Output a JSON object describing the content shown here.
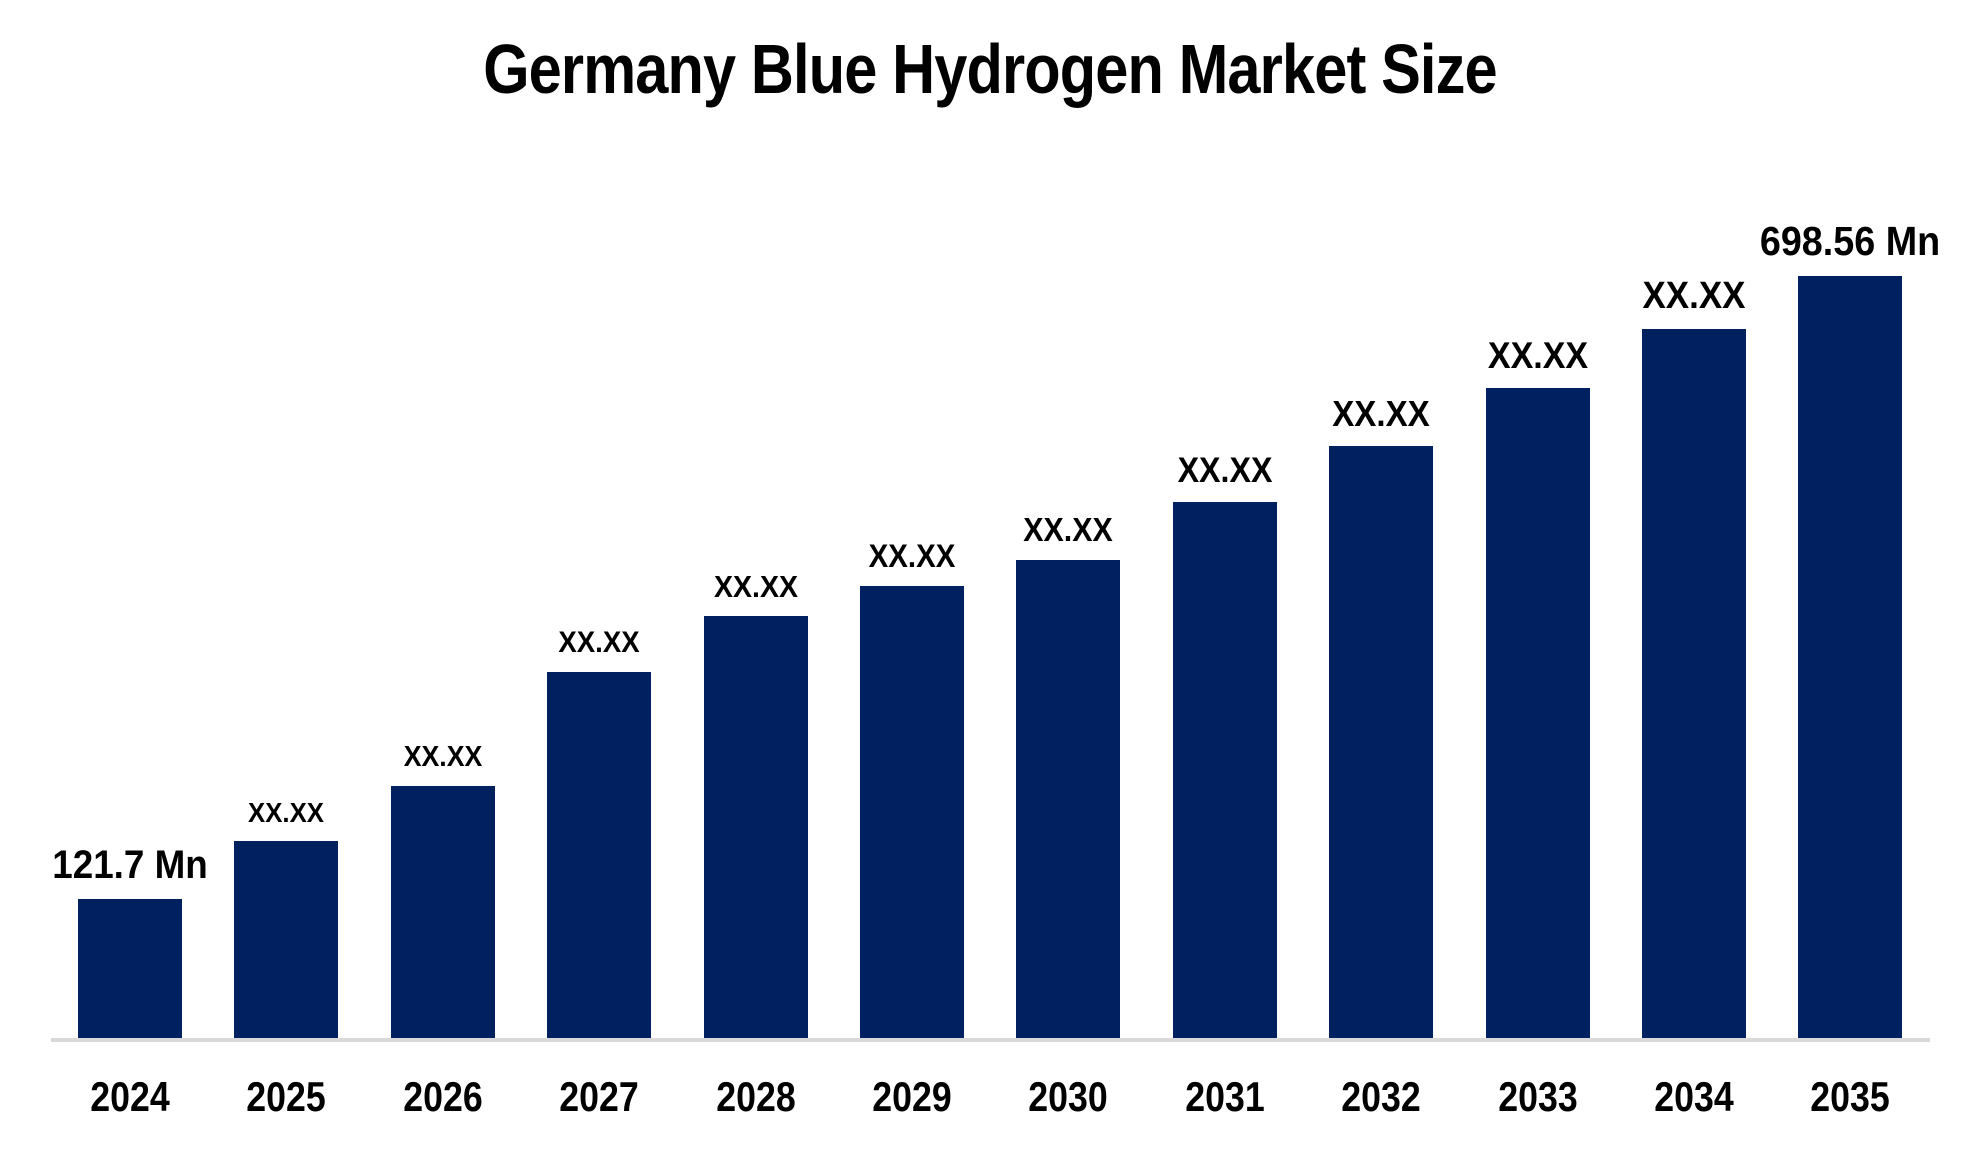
{
  "chart_data": {
    "type": "bar",
    "title": "Germany Blue Hydrogen Market Size",
    "unit": "Mn",
    "categories": [
      "2024",
      "2025",
      "2026",
      "2027",
      "2028",
      "2029",
      "2030",
      "2031",
      "2032",
      "2033",
      "2034",
      "2035"
    ],
    "value_labels": [
      "121.7 Mn",
      "XX.XX",
      "XX.XX",
      "XX.XX",
      "XX.XX",
      "XX.XX",
      "XX.XX",
      "XX.XX",
      "XX.XX",
      "XX.XX",
      "XX.XX",
      "698.56 Mn"
    ],
    "values_mn_estimated": [
      121.7,
      175.38,
      226.31,
      331.87,
      383.72,
      411.5,
      435.58,
      489.28,
      541.13,
      594.83,
      649.46,
      698.56
    ],
    "known_values": {
      "2024": 121.7,
      "2035": 698.56
    },
    "bar_color": "#002060",
    "label_color": "#000000",
    "title_color": "#000000",
    "axis_line_color": "#d9d9d9",
    "background": "#ffffff",
    "y_axis_visible": false,
    "grid": false,
    "legend": "none",
    "ylim": [
      0,
      770
    ]
  }
}
